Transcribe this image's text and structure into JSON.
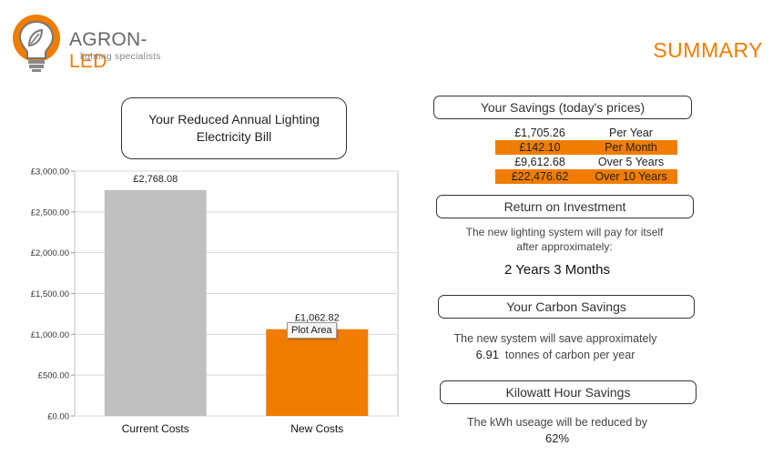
{
  "header": {
    "logo_name_a": "AGRON-",
    "logo_name_b": "LED",
    "logo_tagline": "lighting specialists",
    "summary_title": "SUMMARY"
  },
  "colors": {
    "accent": "#f07d00",
    "grey_bar": "#c0c0c0",
    "gridline": "#d9d9d9"
  },
  "chart_data": {
    "type": "bar",
    "title": "Your Reduced Annual Lighting Electricity Bill",
    "categories": [
      "Current Costs",
      "New Costs"
    ],
    "values": [
      2768.08,
      1062.82
    ],
    "value_labels": [
      "£2,768.08",
      "£1,062.82"
    ],
    "bar_colors": [
      "#c0c0c0",
      "#f07d00"
    ],
    "ylim": [
      0,
      3000
    ],
    "yticks": [
      0,
      500,
      1000,
      1500,
      2000,
      2500,
      3000
    ],
    "ytick_labels": [
      "£0.00",
      "£500.00",
      "£1,000.00",
      "£1,500.00",
      "£2,000.00",
      "£2,500.00",
      "£3,000.00"
    ],
    "grid": true,
    "xlabel": "",
    "ylabel": "",
    "tooltip": "Plot Area"
  },
  "savings": {
    "title": "Your Savings (today's prices)",
    "rows": [
      {
        "amount": "£1,705.26",
        "period": "Per Year",
        "highlight": false
      },
      {
        "amount": "£142.10",
        "period": "Per Month",
        "highlight": true
      },
      {
        "amount": "£9,612.68",
        "period": "Over 5 Years",
        "highlight": false
      },
      {
        "amount": "£22,476.62",
        "period": "Over 10 Years",
        "highlight": true
      }
    ]
  },
  "roi": {
    "title": "Return on Investment",
    "line1": "The new lighting system will pay for itself",
    "line2": "after approximately:",
    "value": "2 Years 3 Months"
  },
  "carbon": {
    "title": "Your Carbon Savings",
    "line1": "The new system will save approximately",
    "amount": "6.91",
    "line2": "tonnes of carbon per year"
  },
  "kwh": {
    "title": "Kilowatt Hour Savings",
    "line1": "The kWh useage will be reduced by",
    "value": "62%"
  }
}
